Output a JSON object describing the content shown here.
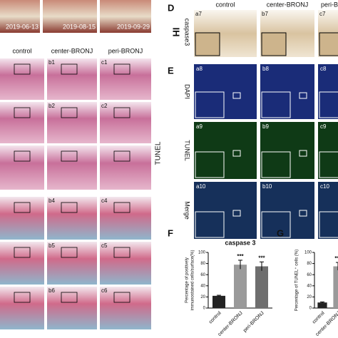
{
  "photos": {
    "dates": [
      "2019-06-13",
      "2019-08-15",
      "2019-09-29"
    ]
  },
  "histology": {
    "columns": [
      "control",
      "center-BRONJ",
      "peri-BRONJ"
    ],
    "row_label": "TUNEL",
    "panels": [
      [
        "b1",
        "c1"
      ],
      [
        "b2",
        "c2"
      ],
      [
        "b4",
        "c4"
      ],
      [
        "b5",
        "c5"
      ],
      [
        "b6",
        "c6"
      ]
    ]
  },
  "panel_d": {
    "label": "D",
    "columns": [
      "control",
      "center-BRONJ",
      "peri-BRONJ"
    ],
    "row_labels": [
      "IH",
      "caspase3"
    ],
    "panels": [
      "a7",
      "b7",
      "c7"
    ]
  },
  "panel_e": {
    "label": "E",
    "row_labels": [
      "DAPI",
      "TUNEL",
      "Merge"
    ],
    "panels": [
      [
        "a8",
        "b8",
        "c8"
      ],
      [
        "a9",
        "b9",
        "c9"
      ],
      [
        "a10",
        "b10",
        "c10"
      ]
    ]
  },
  "chart_data": [
    {
      "type": "bar",
      "label": "F",
      "title": "caspase 3",
      "ylabel": [
        "Percentage of positively",
        "immunostained cells/surface(%)"
      ],
      "categories": [
        "control",
        "center-BRONJ",
        "peri-BRONJ"
      ],
      "values": [
        22,
        78,
        75
      ],
      "errors": [
        1,
        8,
        8
      ],
      "colors": [
        "#222222",
        "#9a9a9a",
        "#6e6e6e"
      ],
      "significance": [
        {
          "index": 1,
          "label": "***"
        },
        {
          "index": 2,
          "label": "***"
        }
      ],
      "ylim": [
        0,
        100
      ],
      "yticks": [
        0,
        20,
        40,
        60,
        80,
        100
      ]
    },
    {
      "type": "bar",
      "label": "G",
      "ylabel": [
        "Percentage of TUNEL⁺ cells (%)"
      ],
      "categories": [
        "control",
        "center-BRONJ"
      ],
      "values": [
        10,
        75
      ],
      "errors": [
        1,
        7
      ],
      "colors": [
        "#222222",
        "#9a9a9a"
      ],
      "significance": [
        {
          "index": 1,
          "label": "***"
        }
      ],
      "ylim": [
        0,
        100
      ],
      "yticks": [
        0,
        20,
        40,
        60,
        80,
        100
      ]
    }
  ]
}
